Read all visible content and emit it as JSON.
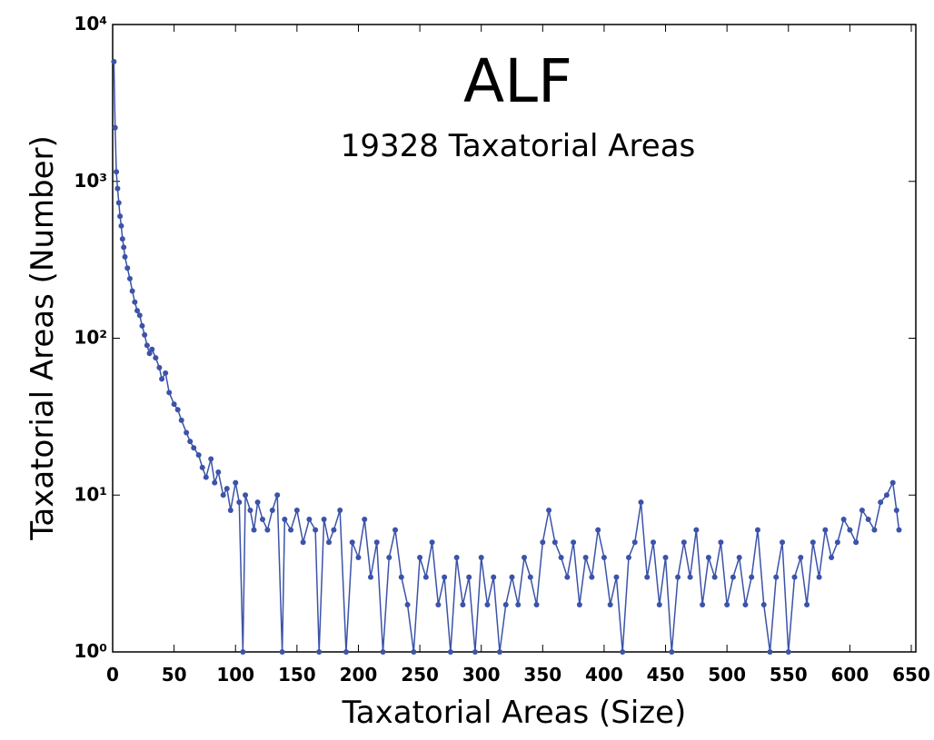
{
  "chart_data": {
    "type": "line",
    "title": "ALF",
    "subtitle": "19328 Taxatorial Areas",
    "x_label": "Taxatorial Areas (Size)",
    "y_label": "Taxatorial Areas (Number)",
    "log_y": true,
    "xlim": [
      0,
      650
    ],
    "ylim": [
      1,
      10000
    ],
    "xticks": [
      0,
      50,
      100,
      150,
      200,
      250,
      300,
      350,
      400,
      450,
      500,
      550,
      600,
      650
    ],
    "yticks": [
      {
        "value": 1,
        "label": "10⁰"
      },
      {
        "value": 10,
        "label": "10¹"
      },
      {
        "value": 100,
        "label": "10²"
      },
      {
        "value": 1000,
        "label": "10³"
      },
      {
        "value": 10000,
        "label": "10⁴"
      }
    ],
    "series": [
      {
        "name": "ALF",
        "color": "#3b53a8",
        "x": [
          1,
          2,
          3,
          4,
          5,
          6,
          7,
          8,
          9,
          10,
          12,
          14,
          16,
          18,
          20,
          22,
          24,
          26,
          28,
          30,
          32,
          35,
          38,
          40,
          43,
          46,
          50,
          53,
          56,
          60,
          63,
          66,
          70,
          73,
          76,
          80,
          83,
          86,
          90,
          93,
          96,
          100,
          103,
          106,
          108,
          112,
          115,
          118,
          122,
          126,
          130,
          134,
          138,
          140,
          145,
          150,
          155,
          160,
          165,
          168,
          172,
          176,
          180,
          185,
          190,
          195,
          200,
          205,
          210,
          215,
          220,
          225,
          230,
          235,
          240,
          245,
          250,
          255,
          260,
          265,
          270,
          275,
          280,
          285,
          290,
          295,
          300,
          305,
          310,
          315,
          320,
          325,
          330,
          335,
          340,
          345,
          350,
          355,
          360,
          365,
          370,
          375,
          380,
          385,
          390,
          395,
          400,
          405,
          410,
          415,
          420,
          425,
          430,
          435,
          440,
          445,
          450,
          455,
          460,
          465,
          470,
          475,
          480,
          485,
          490,
          495,
          500,
          505,
          510,
          515,
          520,
          525,
          530,
          535,
          540,
          545,
          550,
          555,
          560,
          565,
          570,
          575,
          580,
          585,
          590,
          595,
          600,
          605,
          610,
          615,
          620,
          625,
          630,
          635,
          638,
          640
        ],
        "values": [
          5800,
          2200,
          1150,
          900,
          730,
          600,
          520,
          430,
          380,
          330,
          280,
          240,
          200,
          170,
          150,
          140,
          120,
          105,
          90,
          80,
          85,
          75,
          65,
          55,
          60,
          45,
          38,
          35,
          30,
          25,
          22,
          20,
          18,
          15,
          13,
          17,
          12,
          14,
          10,
          11,
          8,
          12,
          9,
          1,
          10,
          8,
          6,
          9,
          7,
          6,
          8,
          10,
          1,
          7,
          6,
          8,
          5,
          7,
          6,
          1,
          7,
          5,
          6,
          8,
          1,
          5,
          4,
          7,
          3,
          5,
          1,
          4,
          6,
          3,
          2,
          1,
          4,
          3,
          5,
          2,
          3,
          1,
          4,
          2,
          3,
          1,
          4,
          2,
          3,
          1,
          2,
          3,
          2,
          4,
          3,
          2,
          5,
          8,
          5,
          4,
          3,
          5,
          2,
          4,
          3,
          6,
          4,
          2,
          3,
          1,
          4,
          5,
          9,
          3,
          5,
          2,
          4,
          1,
          3,
          5,
          3,
          6,
          2,
          4,
          3,
          5,
          2,
          3,
          4,
          2,
          3,
          6,
          2,
          1,
          3,
          5,
          1,
          3,
          4,
          2,
          5,
          3,
          6,
          4,
          5,
          7,
          6,
          5,
          8,
          7,
          6,
          9,
          10,
          12,
          8,
          6
        ]
      }
    ]
  }
}
